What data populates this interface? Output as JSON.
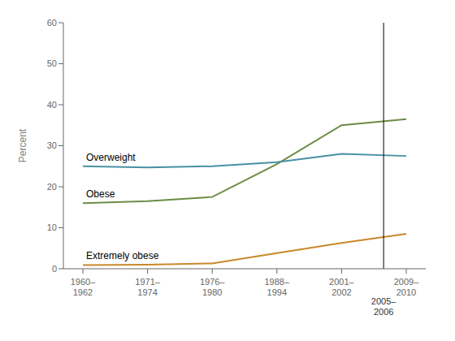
{
  "chart_data": {
    "type": "line",
    "ylabel": "Percent",
    "categories": [
      "1960–\n1962",
      "1971–\n1974",
      "1976–\n1980",
      "1988–\n1994",
      "2001–\n2002",
      "2009–\n2010"
    ],
    "series": [
      {
        "name": "Obese",
        "color": "#6b8c44",
        "values": [
          16.0,
          16.5,
          17.5,
          25.5,
          35.0,
          36.5
        ]
      },
      {
        "name": "Overweight",
        "color": "#4a90a4",
        "values": [
          25.0,
          24.7,
          25.0,
          26.0,
          28.0,
          27.5
        ]
      },
      {
        "name": "Extremely obese",
        "color": "#c9882a",
        "values": [
          0.9,
          1.0,
          1.3,
          3.8,
          6.3,
          8.5
        ]
      }
    ],
    "ylim": [
      0,
      60
    ],
    "yticks": [
      0,
      10,
      20,
      30,
      40,
      50,
      60
    ],
    "grid": false,
    "annotations": [
      {
        "text": "2005–\n2006",
        "x": 4.65
      }
    ]
  }
}
